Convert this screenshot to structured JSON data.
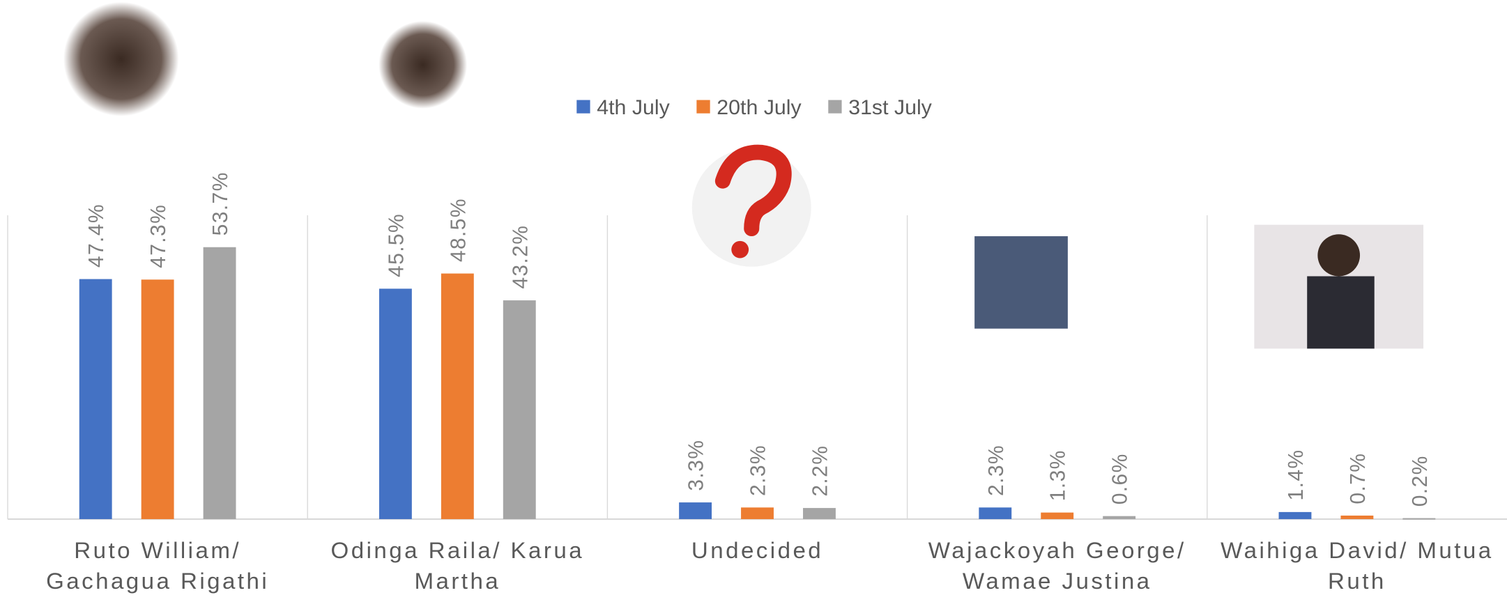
{
  "chart_data": {
    "type": "bar",
    "categories": [
      "Ruto William/ Gachagua Rigathi",
      "Odinga Raila/ Karua Martha",
      "Undecided",
      "Wajackoyah George/ Wamae Justina",
      "Waihiga David/ Mutua Ruth"
    ],
    "series": [
      {
        "name": "4th July",
        "color": "#4472c4",
        "values": [
          47.4,
          45.5,
          3.3,
          2.3,
          1.4
        ],
        "value_labels": [
          "47.4%",
          "45.5%",
          "3.3%",
          "2.3%",
          "1.4%"
        ]
      },
      {
        "name": "20th July",
        "color": "#ed7d31",
        "values": [
          47.3,
          48.5,
          2.3,
          1.3,
          0.7
        ],
        "value_labels": [
          "47.3%",
          "48.5%",
          "2.3%",
          "1.3%",
          "0.7%"
        ]
      },
      {
        "name": "31st July",
        "color": "#a5a5a5",
        "values": [
          53.7,
          43.2,
          2.2,
          0.6,
          0.2
        ],
        "value_labels": [
          "53.7%",
          "43.2%",
          "2.2%",
          "0.6%",
          "0.2%"
        ]
      }
    ],
    "ylim": [
      0,
      60
    ],
    "legend": "top"
  }
}
